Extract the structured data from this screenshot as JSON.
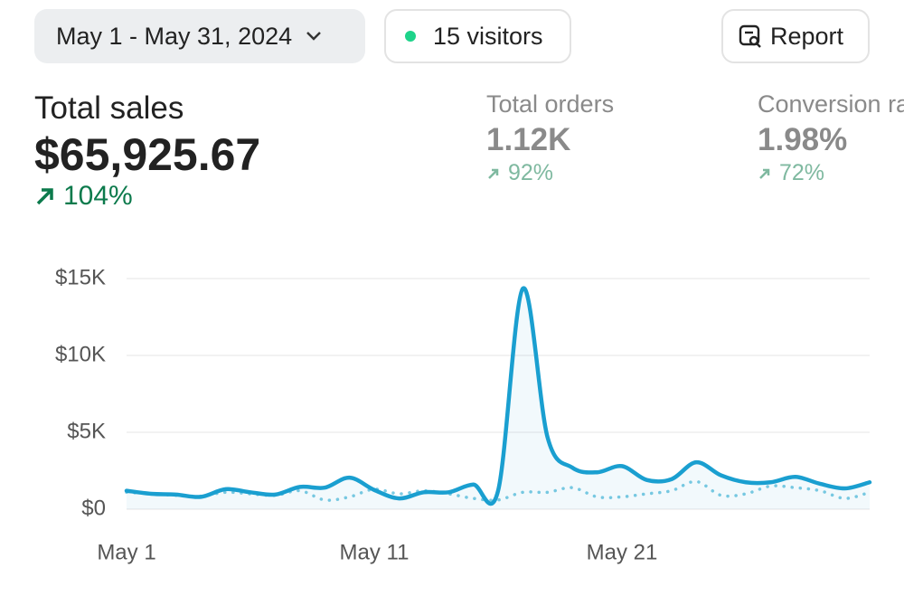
{
  "header": {
    "date_range": "May 1 - May 31, 2024",
    "visitors": "15 visitors",
    "report": "Report"
  },
  "metrics": [
    {
      "label": "Total sales",
      "value": "$65,925.67",
      "change": "104%"
    },
    {
      "label": "Total orders",
      "value": "1.12K",
      "change": "92%"
    },
    {
      "label": "Conversion rate",
      "value": "1.98%",
      "change": "72%"
    }
  ],
  "chart_data": {
    "type": "line",
    "categories": [
      "May 1",
      null,
      null,
      null,
      null,
      null,
      null,
      null,
      null,
      null,
      "May 11",
      null,
      null,
      null,
      null,
      null,
      null,
      null,
      null,
      null,
      "May 21",
      null,
      null,
      null,
      null,
      null,
      null,
      null,
      null,
      null,
      null
    ],
    "series": [
      {
        "color": "#1a9fd0",
        "style": "solid",
        "fill": true,
        "values": [
          1200,
          1000,
          950,
          800,
          1300,
          1100,
          950,
          1450,
          1400,
          2050,
          1250,
          700,
          1100,
          1100,
          1600,
          1200,
          14350,
          4650,
          2700,
          2400,
          2800,
          1900,
          1950,
          3050,
          2200,
          1750,
          1750,
          2100,
          1650,
          1350,
          1750
        ]
      },
      {
        "color": "#7ccbe3",
        "style": "dotted",
        "fill": false,
        "values": [
          1100,
          1000,
          900,
          850,
          1100,
          1000,
          900,
          1200,
          600,
          800,
          1300,
          1000,
          1200,
          1000,
          700,
          600,
          1100,
          1100,
          1400,
          800,
          800,
          1000,
          1200,
          1800,
          900,
          1000,
          1500,
          1400,
          1200,
          700,
          1100
        ]
      }
    ],
    "ylim": [
      0,
      15000
    ],
    "yticks": [
      {
        "value": 0,
        "label": "$0"
      },
      {
        "value": 5000,
        "label": "$5K"
      },
      {
        "value": 10000,
        "label": "$10K"
      },
      {
        "value": 15000,
        "label": "$15K"
      }
    ],
    "grid": true
  }
}
